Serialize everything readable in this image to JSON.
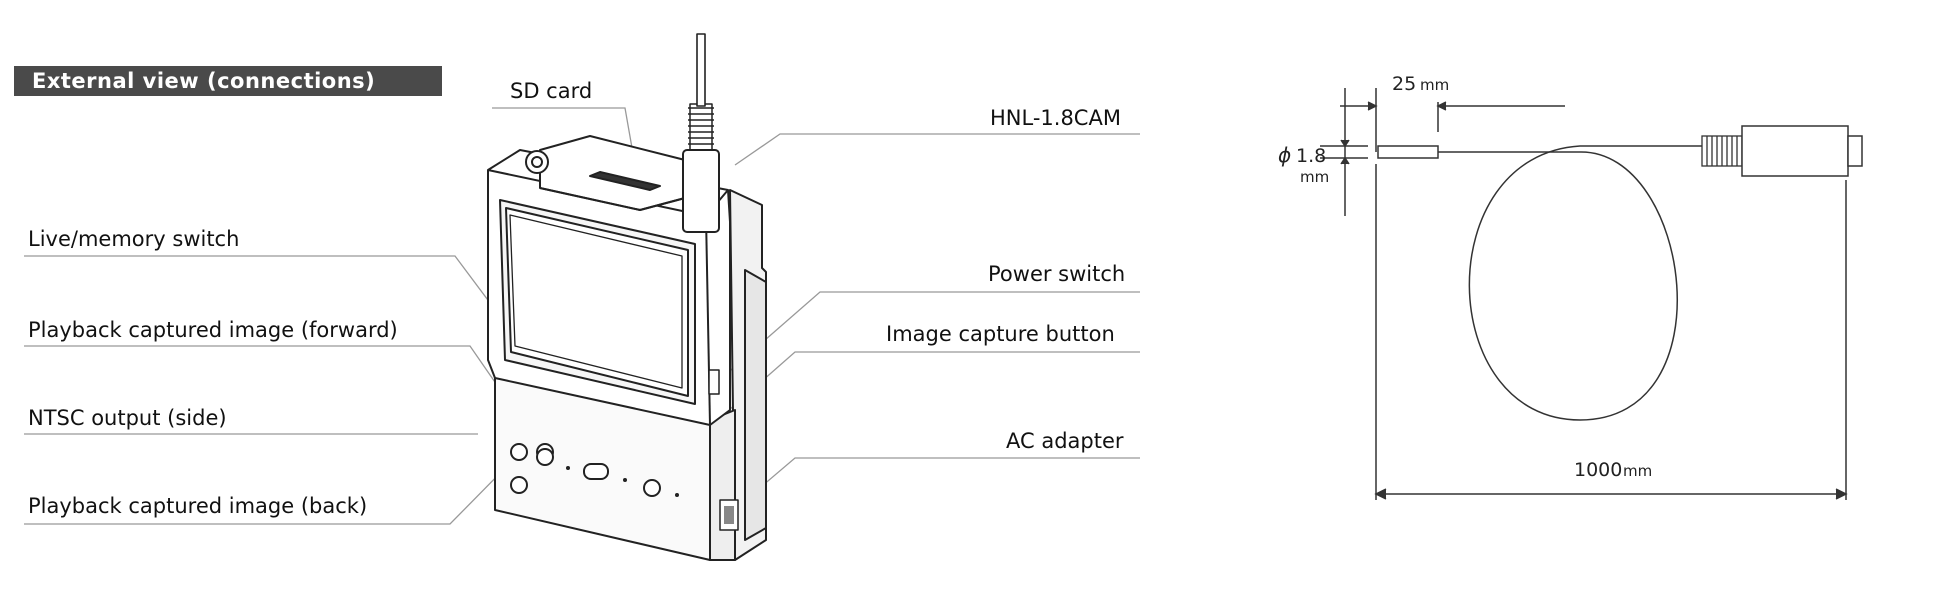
{
  "section_title": "External view (connections)",
  "labels": {
    "sd_card": "SD card",
    "hnl": "HNL-1.8CAM",
    "live_memory": "Live/memory switch",
    "power_switch": "Power switch",
    "playback_forward": "Playback captured image (forward)",
    "image_capture": "Image capture button",
    "ntsc_output": "NTSC output (side)",
    "ac_adapter": "AC adapter",
    "playback_back": "Playback captured image (back)"
  },
  "dimensions": {
    "length_tip": "25",
    "length_tip_unit": "mm",
    "diameter_symbol": "ϕ",
    "diameter_value": "1.8",
    "diameter_unit": "mm",
    "length_total": "1000",
    "length_total_unit": "mm"
  }
}
